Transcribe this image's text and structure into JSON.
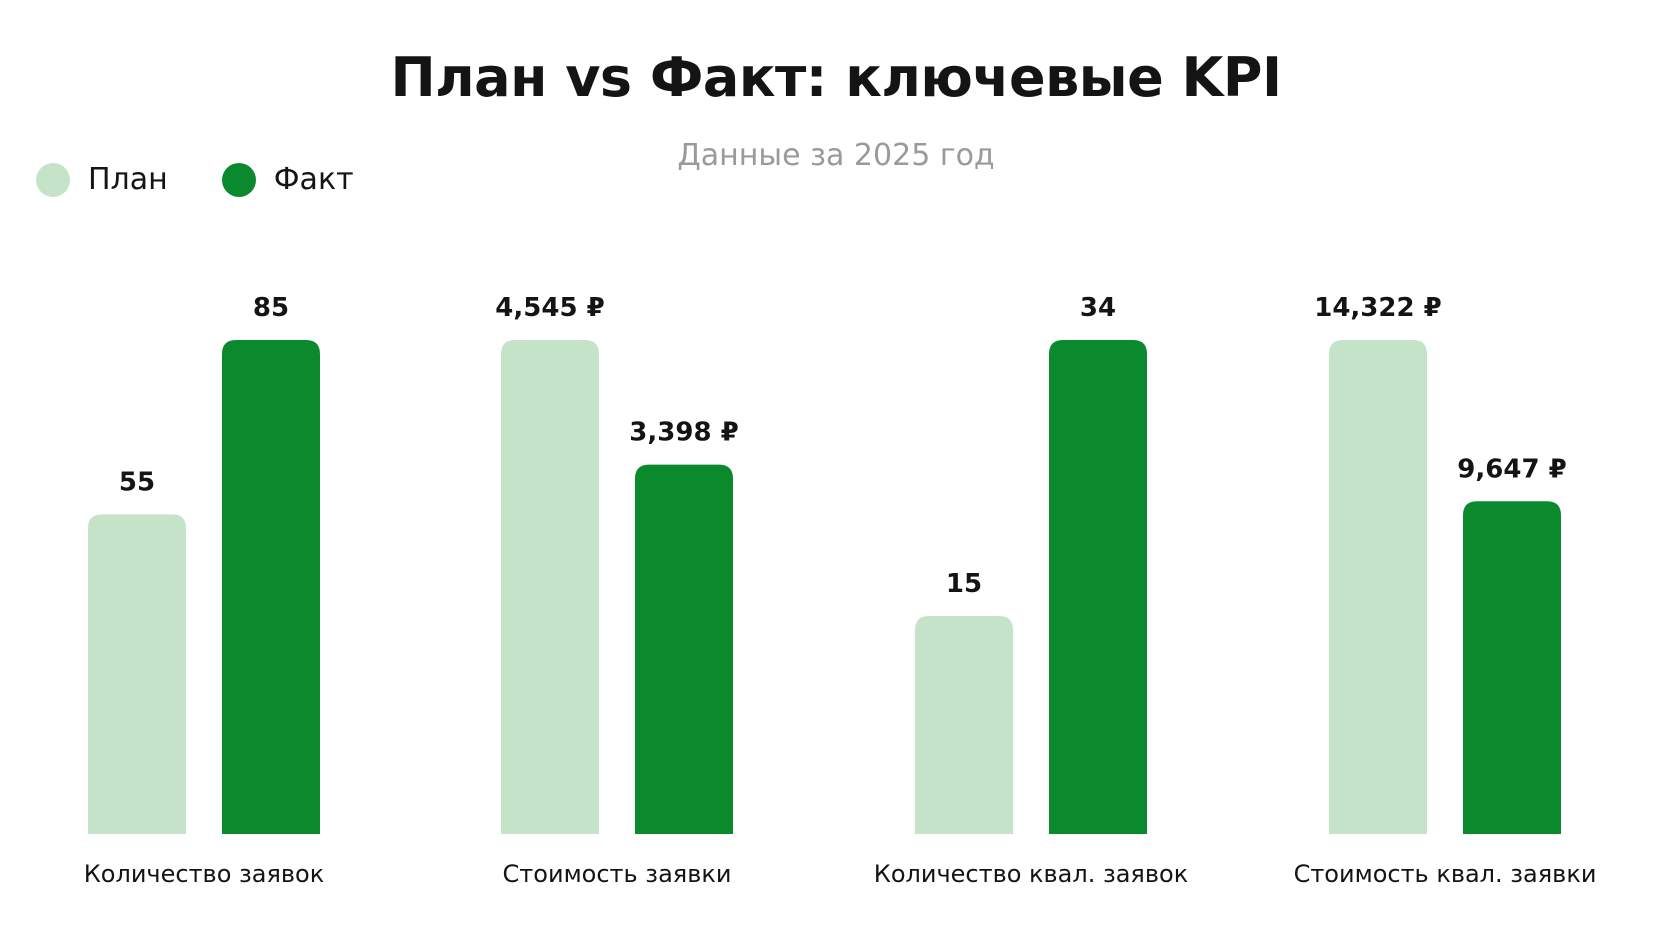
{
  "chart_data": {
    "type": "bar",
    "title": "План vs Факт: ключевые KPI",
    "subtitle": "Данные за 2025 год",
    "categories": [
      "Количество заявок",
      "Стоимость заявки",
      "Количество квал. заявок",
      "Стоимость квал. заявки"
    ],
    "series": [
      {
        "name": "План",
        "color": "#c5e3c8",
        "values": [
          55,
          4545,
          15,
          14322
        ],
        "labels": [
          "55",
          "4,545 ₽",
          "15",
          "14,322 ₽"
        ]
      },
      {
        "name": "Факт",
        "color": "#0b8a2d",
        "values": [
          85,
          3398,
          34,
          9647
        ],
        "labels": [
          "85",
          "3,398 ₽",
          "34",
          "9,647 ₽"
        ]
      }
    ],
    "legend_position": "top-left",
    "grid": false,
    "axes_visible": false
  }
}
